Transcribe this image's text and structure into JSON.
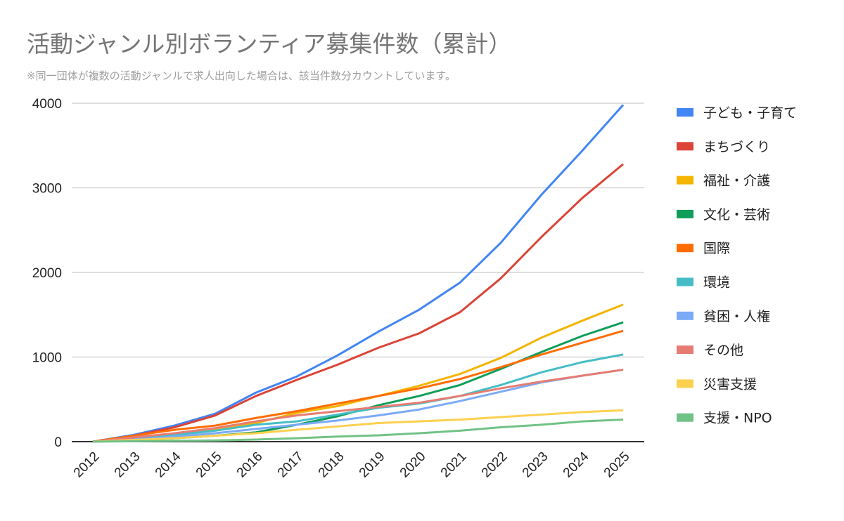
{
  "chart_data": {
    "type": "line",
    "title": "活動ジャンル別ボランティア募集件数（累計）",
    "subtitle": "※同一団体が複数の活動ジャンルで求人出向した場合は、該当件数分カウントしています。",
    "xlabel": "",
    "ylabel": "",
    "x": [
      "2012",
      "2013",
      "2014",
      "2015",
      "2016",
      "2017",
      "2018",
      "2019",
      "2020",
      "2021",
      "2022",
      "2023",
      "2024",
      "2025"
    ],
    "ylim": [
      0,
      4000
    ],
    "yticks": [
      "0",
      "1000",
      "2000",
      "3000",
      "4000"
    ],
    "grid": true,
    "legend_position": "right",
    "series": [
      {
        "name": "子ども・子育て",
        "color": "#4285F4",
        "values": [
          0,
          80,
          190,
          330,
          580,
          770,
          1020,
          1300,
          1560,
          1880,
          2350,
          2920,
          3440,
          3980
        ]
      },
      {
        "name": "まちづくり",
        "color": "#DB4437",
        "values": [
          0,
          70,
          170,
          310,
          540,
          730,
          910,
          1110,
          1280,
          1530,
          1930,
          2420,
          2880,
          3280
        ]
      },
      {
        "name": "福祉・介護",
        "color": "#F4B400",
        "values": [
          0,
          40,
          90,
          140,
          220,
          340,
          420,
          540,
          660,
          800,
          990,
          1230,
          1430,
          1620
        ]
      },
      {
        "name": "文化・芸術",
        "color": "#0F9D58",
        "values": [
          0,
          20,
          40,
          70,
          110,
          200,
          300,
          430,
          540,
          670,
          860,
          1060,
          1250,
          1410
        ]
      },
      {
        "name": "国際",
        "color": "#FF6D01",
        "values": [
          0,
          70,
          140,
          190,
          280,
          360,
          450,
          540,
          630,
          740,
          880,
          1030,
          1170,
          1310
        ]
      },
      {
        "name": "環境",
        "color": "#46BDC6",
        "values": [
          0,
          30,
          80,
          130,
          200,
          240,
          320,
          400,
          450,
          540,
          670,
          820,
          940,
          1030
        ]
      },
      {
        "name": "貧困・人権",
        "color": "#7BAAF7",
        "values": [
          0,
          25,
          60,
          100,
          150,
          200,
          250,
          310,
          380,
          480,
          590,
          700,
          780,
          850
        ]
      },
      {
        "name": "その他",
        "color": "#E67C73",
        "values": [
          0,
          50,
          100,
          160,
          240,
          310,
          360,
          410,
          460,
          540,
          630,
          710,
          780,
          850
        ]
      },
      {
        "name": "災害支援",
        "color": "#FCD04F",
        "values": [
          0,
          20,
          40,
          70,
          100,
          140,
          180,
          220,
          240,
          260,
          290,
          320,
          350,
          370
        ]
      },
      {
        "name": "支援・NPO",
        "color": "#71C287",
        "values": [
          0,
          5,
          10,
          15,
          25,
          40,
          60,
          75,
          100,
          130,
          170,
          200,
          240,
          260
        ]
      }
    ]
  }
}
